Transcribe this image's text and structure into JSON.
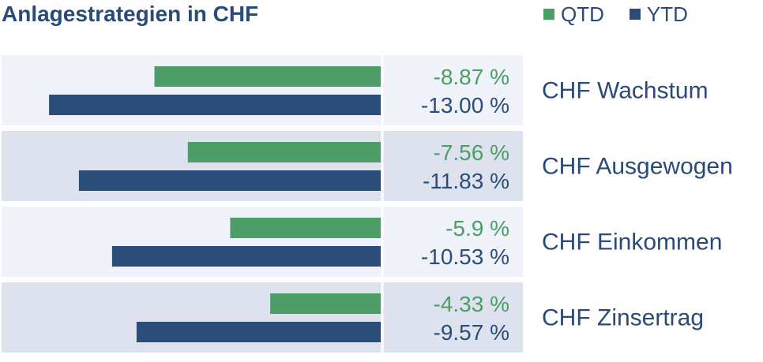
{
  "colors": {
    "qtd": "#4c9d66",
    "ytd": "#2b4d79",
    "row_light": "#eff2f8",
    "row_dark": "#dde2ee",
    "text": "#2a4a78"
  },
  "chart_data": {
    "type": "bar",
    "title": "Anlagestrategien in CHF",
    "categories": [
      "CHF Wachstum",
      "CHF Ausgewogen",
      "CHF Einkommen",
      "CHF Zinsertrag"
    ],
    "series": [
      {
        "name": "QTD",
        "values": [
          -8.87,
          -7.56,
          -5.9,
          -4.33
        ],
        "labels": [
          "-8.87 %",
          "-7.56 %",
          "-5.9 %",
          "-4.33 %"
        ]
      },
      {
        "name": "YTD",
        "values": [
          -13.0,
          -11.83,
          -10.53,
          -9.57
        ],
        "labels": [
          "-13.00 %",
          "-11.83 %",
          "-10.53 %",
          "-9.57 %"
        ]
      }
    ],
    "orientation": "horizontal",
    "legend": "top-right",
    "grid": false
  }
}
